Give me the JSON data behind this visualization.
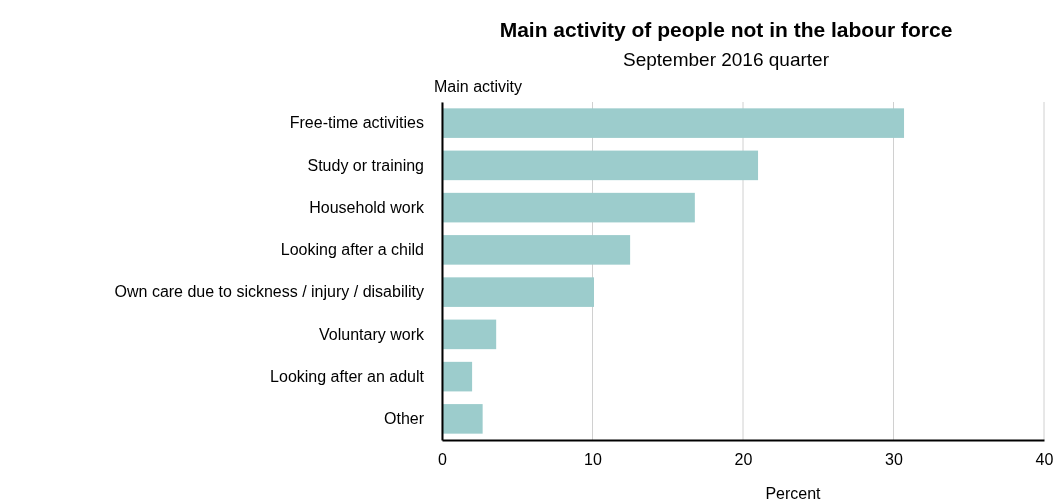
{
  "chart_data": {
    "type": "bar",
    "orientation": "horizontal",
    "title": "Main activity of people not in the labour force",
    "subtitle": "September 2016 quarter",
    "ylabel": "Main activity",
    "xlabel": "Percent",
    "categories": [
      "Free-time activities",
      "Study or training",
      "Household work",
      "Looking after a child",
      "Own care due to sickness / injury / disability",
      "Voluntary work",
      "Looking after an adult",
      "Other"
    ],
    "values": [
      30.7,
      21.0,
      16.8,
      12.5,
      10.1,
      3.6,
      2.0,
      2.7
    ],
    "color": "#9ccccc",
    "xlim": [
      0,
      40
    ],
    "xticks": [
      0,
      10,
      20,
      30,
      40
    ],
    "grid": "x"
  }
}
